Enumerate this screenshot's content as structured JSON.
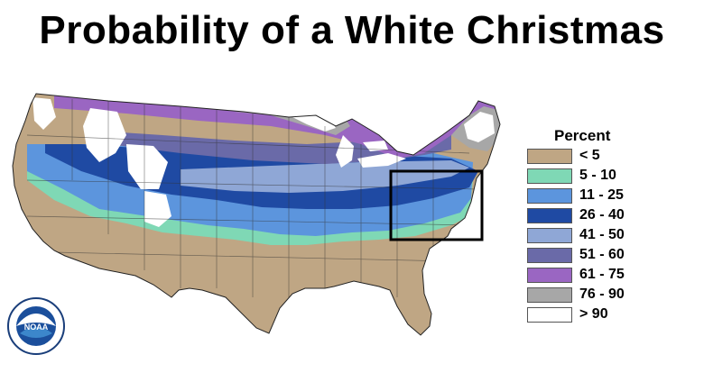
{
  "title": "Probability of a White Christmas",
  "legend": {
    "heading": "Percent",
    "items": [
      {
        "label": "< 5",
        "color": "#bfa684"
      },
      {
        "label": "5 - 10",
        "color": "#7fd8b5"
      },
      {
        "label": "11 - 25",
        "color": "#5c95dd"
      },
      {
        "label": "26 - 40",
        "color": "#1f4aa3"
      },
      {
        "label": "41 - 50",
        "color": "#8fa7d6"
      },
      {
        "label": "51 - 60",
        "color": "#6a6aa8"
      },
      {
        "label": "61 - 75",
        "color": "#9a66c2"
      },
      {
        "label": "76 - 90",
        "color": "#a7a7a7"
      },
      {
        "label": "> 90",
        "color": "#ffffff"
      }
    ]
  },
  "highlight_box": {
    "color": "#000000"
  },
  "logo": {
    "name": "NOAA",
    "text": "NOAA",
    "icon": "noaa-logo-icon"
  }
}
